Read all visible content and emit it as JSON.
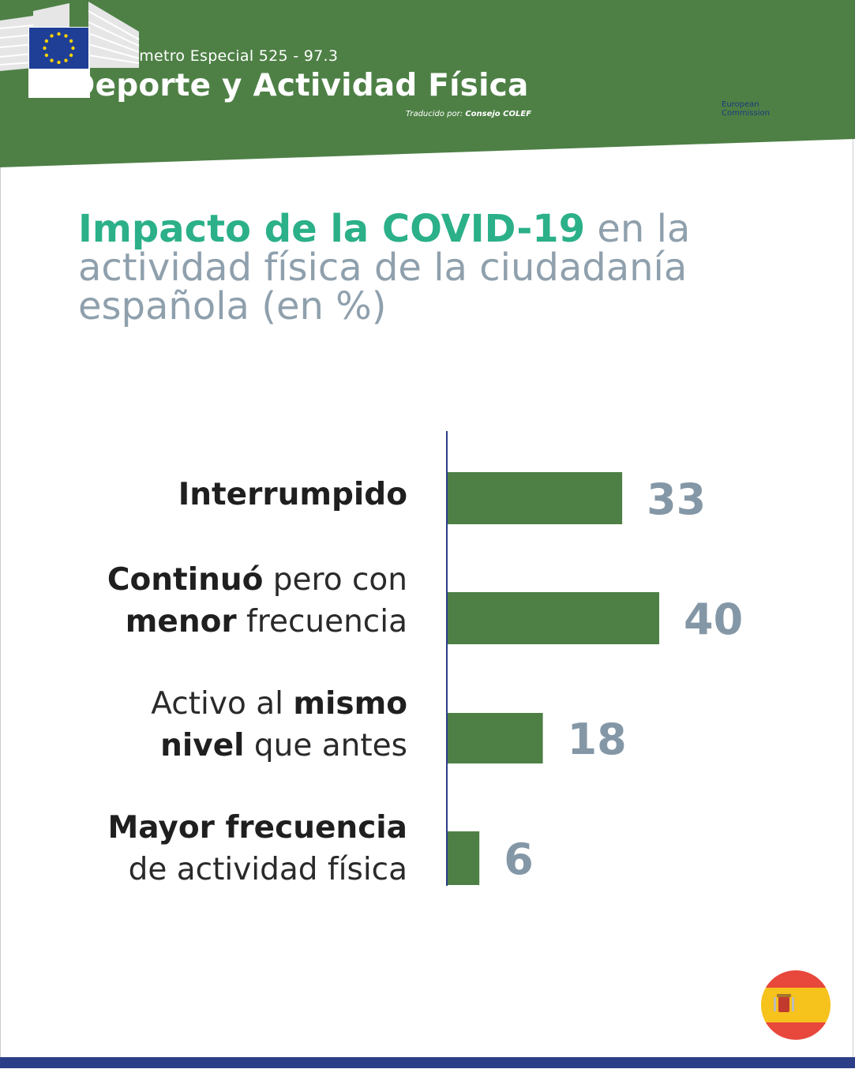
{
  "header": {
    "survey": "Eurobarómetro Especial 525 - 97.3",
    "title": "Deporte y Actividad Física",
    "credit_prefix": "Traducido por:",
    "credit_org": "Consejo COLEF",
    "logo_text_line1": "European",
    "logo_text_line2": "Commission"
  },
  "title": {
    "highlight": "Impacto de la COVID-19",
    "rest": " en la actividad física de la ciudadanía española (en %)"
  },
  "labels": [
    {
      "bold1": "Interrumpido",
      "plain1": "",
      "bold2": "",
      "plain2": ""
    },
    {
      "bold1": "Continuó",
      "plain1": " pero con",
      "bold2": "menor",
      "plain2": " frecuencia"
    },
    {
      "bold1": "",
      "plain1": "Activo al ",
      "bold2": "mismo",
      "bold3": "nivel",
      "plain3": " que antes"
    },
    {
      "bold1": "Mayor frecuencia",
      "plain1": "",
      "plain2": "de actividad física"
    }
  ],
  "chart_data": {
    "type": "bar",
    "orientation": "horizontal",
    "title": "Impacto de la COVID-19 en la actividad física de la ciudadanía española (en %)",
    "categories": [
      "Interrumpido",
      "Continuó pero con menor frecuencia",
      "Activo al mismo nivel que antes",
      "Mayor frecuencia de actividad física"
    ],
    "values": [
      33,
      40,
      18,
      6
    ],
    "value_labels": [
      "33",
      "40",
      "18",
      "6"
    ],
    "xlim": [
      0,
      40
    ],
    "grid": false,
    "legend": "none"
  },
  "colors": {
    "header_green": "#4e8046",
    "bar_green": "#4e8046",
    "title_teal": "#2bb089",
    "title_grey": "#8fa0ad",
    "value_grey": "#8497a6",
    "axis_blue": "#2b3e87"
  },
  "icons": {
    "logo": "european-commission-logo",
    "flag": "spain-flag-icon"
  }
}
